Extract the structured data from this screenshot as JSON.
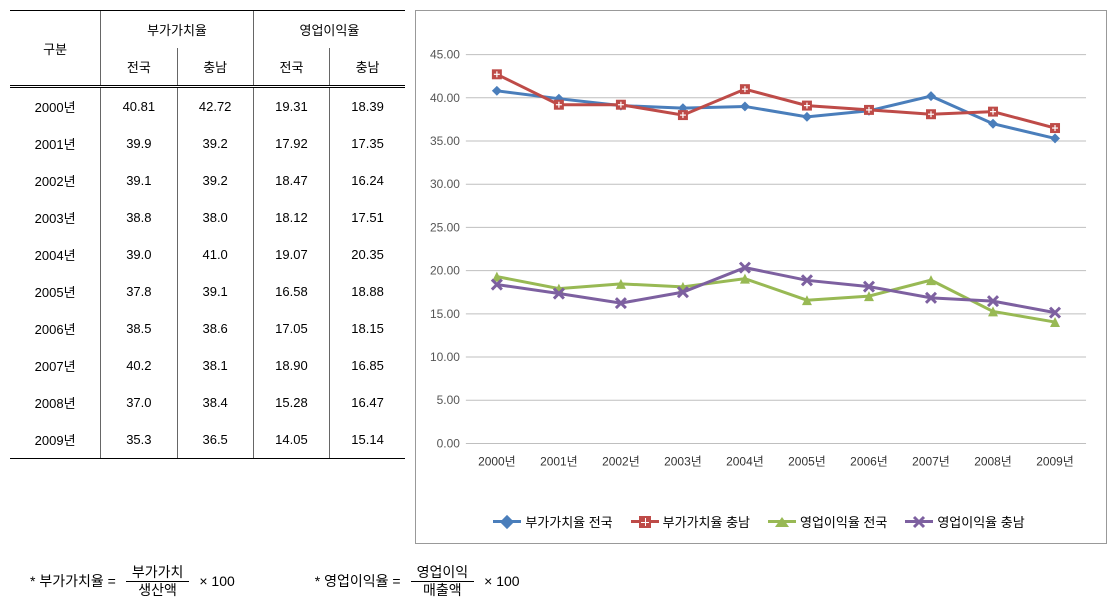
{
  "table": {
    "header_group1": "구분",
    "header_group2": "부가가치율",
    "header_group3": "영업이익율",
    "sub_national": "전국",
    "sub_region": "충남",
    "rows": [
      {
        "year": "2000년",
        "vn": "40.81",
        "vr": "42.72",
        "pn": "19.31",
        "pr": "18.39"
      },
      {
        "year": "2001년",
        "vn": "39.9",
        "vr": "39.2",
        "pn": "17.92",
        "pr": "17.35"
      },
      {
        "year": "2002년",
        "vn": "39.1",
        "vr": "39.2",
        "pn": "18.47",
        "pr": "16.24"
      },
      {
        "year": "2003년",
        "vn": "38.8",
        "vr": "38.0",
        "pn": "18.12",
        "pr": "17.51"
      },
      {
        "year": "2004년",
        "vn": "39.0",
        "vr": "41.0",
        "pn": "19.07",
        "pr": "20.35"
      },
      {
        "year": "2005년",
        "vn": "37.8",
        "vr": "39.1",
        "pn": "16.58",
        "pr": "18.88"
      },
      {
        "year": "2006년",
        "vn": "38.5",
        "vr": "38.6",
        "pn": "17.05",
        "pr": "18.15"
      },
      {
        "year": "2007년",
        "vn": "40.2",
        "vr": "38.1",
        "pn": "18.90",
        "pr": "16.85"
      },
      {
        "year": "2008년",
        "vn": "37.0",
        "vr": "38.4",
        "pn": "15.28",
        "pr": "16.47"
      },
      {
        "year": "2009년",
        "vn": "35.3",
        "vr": "36.5",
        "pn": "14.05",
        "pr": "15.14"
      }
    ]
  },
  "chart": {
    "type": "line",
    "categories": [
      "2000년",
      "2001년",
      "2002년",
      "2003년",
      "2004년",
      "2005년",
      "2006년",
      "2007년",
      "2008년",
      "2009년"
    ],
    "ylim": [
      0,
      45
    ],
    "ytick_step": 5,
    "grid_color": "#bfbfbf",
    "background_color": "#ffffff",
    "line_width": 3,
    "marker_size": 7,
    "series": [
      {
        "name": "부가가치율 전국",
        "color": "#4a7ebb",
        "marker": "diamond",
        "values": [
          40.81,
          39.9,
          39.1,
          38.8,
          39.0,
          37.8,
          38.5,
          40.2,
          37.0,
          35.3
        ]
      },
      {
        "name": "부가가치율 충남",
        "color": "#be4b48",
        "marker": "square-cross",
        "values": [
          42.72,
          39.2,
          39.2,
          38.0,
          41.0,
          39.1,
          38.6,
          38.1,
          38.4,
          36.5
        ]
      },
      {
        "name": "영업이익율 전국",
        "color": "#98b954",
        "marker": "triangle",
        "values": [
          19.31,
          17.92,
          18.47,
          18.12,
          19.07,
          16.58,
          17.05,
          18.9,
          15.28,
          14.05
        ]
      },
      {
        "name": "영업이익율 충남",
        "color": "#7d60a0",
        "marker": "x",
        "values": [
          18.39,
          17.35,
          16.24,
          17.51,
          20.35,
          18.88,
          18.15,
          16.85,
          16.47,
          15.14
        ]
      }
    ]
  },
  "formulas": {
    "f1_label": "* 부가가치율 =",
    "f1_top": "부가가치",
    "f1_bot": "생산액",
    "f1_tail": "× 100",
    "f2_label": "* 영업이익율 =",
    "f2_top": "영업이익",
    "f2_bot": "매출액",
    "f2_tail": "× 100"
  }
}
